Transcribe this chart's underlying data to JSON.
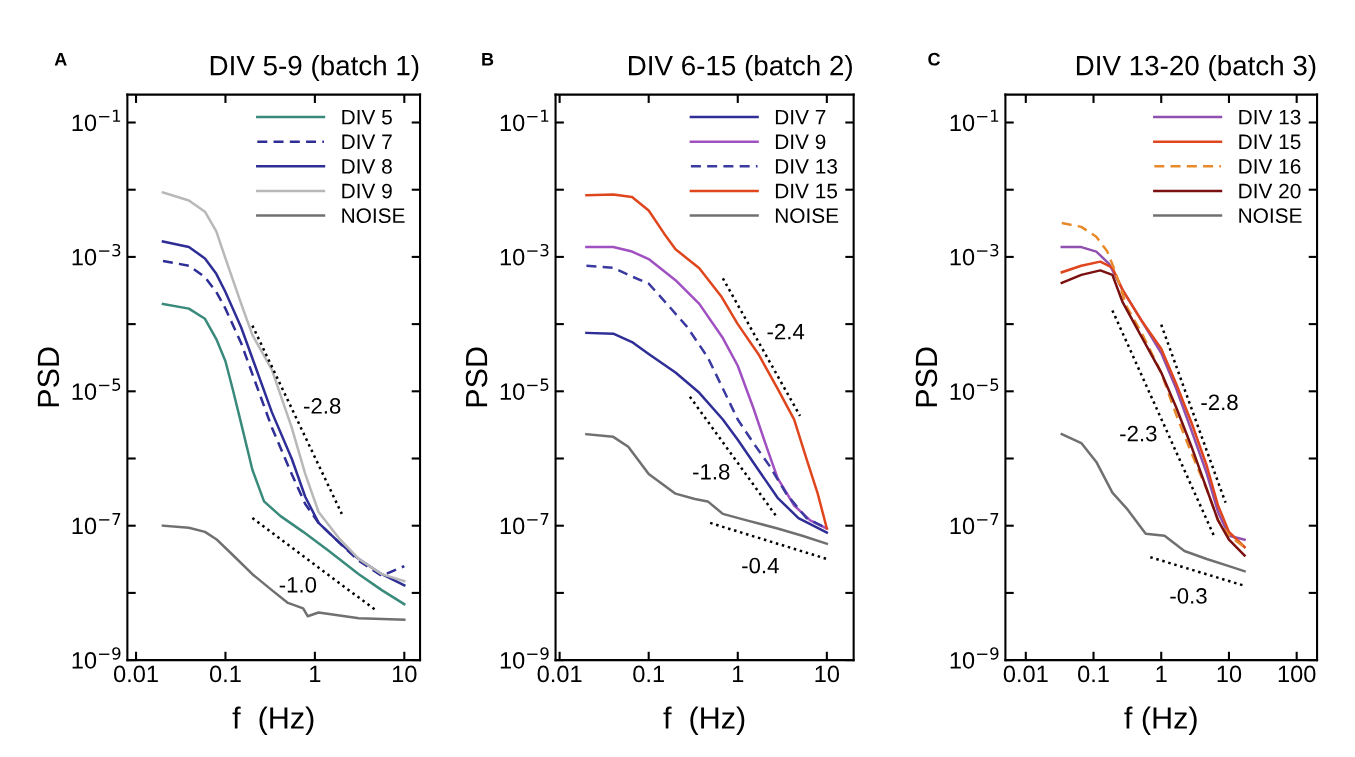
{
  "chart_data": [
    {
      "type": "line",
      "title": "DIV 5-9 (batch 1)",
      "xlabel": "f  (Hz)",
      "ylabel": "PSD",
      "log": "xy",
      "legend": "top right",
      "grid": false,
      "xlim": [
        0.008,
        15
      ],
      "xticks": [
        0.01,
        0.1,
        1,
        10
      ],
      "ylim": [
        1e-09,
        0.26
      ],
      "yticks": [
        {
          "value": 1e-09,
          "label": "10$^{−9}$"
        },
        {
          "value": 1e-08,
          "label": null
        },
        {
          "value": 1e-07,
          "label": "10$^{−7}$"
        },
        {
          "value": 1e-06,
          "label": null
        },
        {
          "value": 1e-05,
          "label": "10$^{−5}$"
        },
        {
          "value": 0.0001,
          "label": null
        },
        {
          "value": 0.001,
          "label": "10$^{−3}$"
        },
        {
          "value": 0.01,
          "label": null
        },
        {
          "value": 0.1,
          "label": "10$^{−1}$"
        }
      ],
      "annotations": [
        "A",
        "-2.8",
        "-1.0"
      ],
      "series": [
        {
          "name": "DIV 5",
          "color": "#3a8a7c",
          "line_style": "solid",
          "x": [
            0.02,
            0.039,
            0.059,
            0.079,
            0.1,
            0.12,
            0.15,
            0.2,
            0.27,
            0.41,
            0.74,
            1.4,
            3.1,
            5.6,
            10
          ],
          "values": [
            0.0002,
            0.00017,
            0.00012,
            6e-05,
            2.8e-05,
            1.1e-05,
            3.3e-06,
            6.8e-07,
            2.3e-07,
            1.4e-07,
            8.1e-08,
            4.3e-08,
            1.9e-08,
            1.1e-08,
            6.8e-09
          ]
        },
        {
          "name": "DIV 7",
          "color": "#2e2e96",
          "line_style": "dashed",
          "x": [
            0.02,
            0.039,
            0.059,
            0.079,
            0.1,
            0.15,
            0.2,
            0.33,
            0.55,
            0.78,
            1.1,
            1.9,
            3.1,
            5.6,
            10
          ],
          "values": [
            0.00087,
            0.00074,
            0.0005,
            0.0003,
            0.00017,
            5.2e-05,
            1.8e-05,
            2.9e-06,
            5.9e-07,
            2.1e-07,
            1.1e-07,
            5.5e-08,
            3e-08,
            1.8e-08,
            2.5e-08
          ]
        },
        {
          "name": "DIV 8",
          "color": "#2e2e96",
          "line_style": "solid",
          "x": [
            0.02,
            0.039,
            0.059,
            0.079,
            0.1,
            0.15,
            0.2,
            0.33,
            0.55,
            0.78,
            1.1,
            1.9,
            3.1,
            5.6,
            10
          ],
          "values": [
            0.0017,
            0.0014,
            0.00095,
            0.00056,
            0.0003,
            8.9e-05,
            3.1e-05,
            4.9e-06,
            1e-06,
            2.7e-07,
            1.1e-07,
            5.5e-08,
            3.2e-08,
            1.9e-08,
            1.3e-08
          ]
        },
        {
          "name": "DIV 9",
          "color": "#b8b8b8",
          "line_style": "solid",
          "x": [
            0.02,
            0.039,
            0.059,
            0.079,
            0.1,
            0.15,
            0.2,
            0.33,
            0.55,
            0.78,
            1.1,
            1.9,
            3.1,
            5.6,
            10
          ],
          "values": [
            0.0091,
            0.0069,
            0.0047,
            0.0024,
            0.00095,
            0.0002,
            6.9e-05,
            2.1e-05,
            2.9e-06,
            5.9e-07,
            1.6e-07,
            6.3e-08,
            3.2e-08,
            1.9e-08,
            1.5e-08
          ]
        },
        {
          "name": "NOISE",
          "color": "#707070",
          "line_style": "solid",
          "x": [
            0.02,
            0.039,
            0.059,
            0.079,
            0.12,
            0.2,
            0.33,
            0.5,
            0.74,
            0.83,
            1.1,
            3.1,
            10
          ],
          "values": [
            1e-07,
            9.3e-08,
            8.1e-08,
            6.3e-08,
            3.7e-08,
            1.9e-08,
            1.1e-08,
            7.1e-09,
            5.9e-09,
            4.5e-09,
            5.1e-09,
            4.2e-09,
            4e-09
          ]
        },
        {
          "color": "#000000",
          "line_style": "dotted",
          "x": [
            0.2,
            2.0
          ],
          "values": [
            9.5e-05,
            1.5e-07
          ]
        },
        {
          "color": "#000000",
          "line_style": "dotted",
          "x": [
            0.2,
            4.9
          ],
          "values": [
            1.3e-07,
            5.4e-09
          ]
        }
      ]
    },
    {
      "type": "line",
      "title": "DIV 6-15 (batch 2)",
      "xlabel": "f  (Hz)",
      "ylabel": "PSD",
      "log": "xy",
      "legend": "top right",
      "grid": false,
      "xlim": [
        0.009,
        20
      ],
      "xticks": [
        0.01,
        0.1,
        1,
        10
      ],
      "ylim": [
        1e-09,
        0.26
      ],
      "yticks": [
        {
          "value": 1e-09,
          "label": "10$^{−9}$"
        },
        {
          "value": 1e-08,
          "label": null
        },
        {
          "value": 1e-07,
          "label": "10$^{−7}$"
        },
        {
          "value": 1e-06,
          "label": null
        },
        {
          "value": 1e-05,
          "label": "10$^{−5}$"
        },
        {
          "value": 0.0001,
          "label": null
        },
        {
          "value": 0.001,
          "label": "10$^{−3}$"
        },
        {
          "value": 0.01,
          "label": null
        },
        {
          "value": 0.1,
          "label": "10$^{−1}$"
        }
      ],
      "annotations": [
        "B",
        "-2.4",
        "-1.8",
        "-0.4"
      ],
      "series": [
        {
          "name": "DIV 7",
          "color": "#2e2e96",
          "line_style": "solid",
          "x": [
            0.02,
            0.04,
            0.065,
            0.1,
            0.2,
            0.37,
            0.68,
            1.0,
            1.7,
            2.8,
            4.8,
            10
          ],
          "values": [
            7.4e-05,
            7.2e-05,
            5.4e-05,
            3.6e-05,
            1.9e-05,
            9.5e-06,
            3.8e-06,
            1.9e-06,
            6.8e-07,
            2.6e-07,
            1.3e-07,
            7.9e-08
          ]
        },
        {
          "name": "DIV 9",
          "color": "#a050c0",
          "line_style": "solid",
          "x": [
            0.02,
            0.04,
            0.065,
            0.1,
            0.2,
            0.37,
            0.68,
            1.0,
            1.5,
            2.1,
            2.8,
            4.3,
            6.5,
            10
          ],
          "values": [
            0.0014,
            0.0014,
            0.0012,
            0.00093,
            0.00045,
            0.0002,
            6.2e-05,
            2.4e-05,
            5.6e-06,
            1.5e-06,
            5.1e-07,
            2e-07,
            1.2e-07,
            9.1e-08
          ]
        },
        {
          "name": "DIV 13",
          "color": "#3a3aa0",
          "line_style": "dashed",
          "x": [
            0.02,
            0.04,
            0.065,
            0.1,
            0.16,
            0.27,
            0.46,
            0.68,
            1.0,
            1.5,
            2.3,
            3.5,
            5.9,
            10
          ],
          "values": [
            0.00074,
            0.00069,
            0.00051,
            0.0004,
            0.0002,
            9.1e-05,
            3.2e-05,
            1.1e-05,
            3.8e-06,
            1.7e-06,
            7.6e-07,
            3e-07,
            1.3e-07,
            9.1e-08
          ]
        },
        {
          "name": "DIV 15",
          "color": "#e0461e",
          "line_style": "solid",
          "x": [
            0.02,
            0.04,
            0.065,
            0.1,
            0.15,
            0.2,
            0.37,
            0.65,
            1.0,
            1.7,
            2.8,
            4.3,
            5.9,
            7.9,
            10
          ],
          "values": [
            0.0083,
            0.0085,
            0.0078,
            0.0049,
            0.0022,
            0.0013,
            0.00068,
            0.00026,
            0.0001,
            3.6e-05,
            1.1e-05,
            3.8e-06,
            1e-06,
            3e-07,
            9.1e-08
          ]
        },
        {
          "name": "NOISE",
          "color": "#707070",
          "line_style": "solid",
          "x": [
            0.02,
            0.04,
            0.059,
            0.1,
            0.2,
            0.33,
            0.46,
            0.68,
            1.26,
            2.8,
            5.3,
            10
          ],
          "values": [
            2.3e-06,
            2.1e-06,
            1.5e-06,
            5.9e-07,
            3e-07,
            2.5e-07,
            2.3e-07,
            1.5e-07,
            1.2e-07,
            9.1e-08,
            7.1e-08,
            5.4e-08
          ]
        },
        {
          "color": "#000000",
          "line_style": "dotted",
          "x": [
            0.68,
            5.0
          ],
          "values": [
            0.00048,
            4.3e-06
          ]
        },
        {
          "color": "#000000",
          "line_style": "dotted",
          "x": [
            0.29,
            2.8
          ],
          "values": [
            8.3e-06,
            1.3e-07
          ]
        },
        {
          "color": "#000000",
          "line_style": "dotted",
          "x": [
            0.49,
            10
          ],
          "values": [
            1.1e-07,
            3.2e-08
          ]
        }
      ]
    },
    {
      "type": "line",
      "title": "DIV 13-20 (batch 3)",
      "xlabel": "f (Hz)",
      "ylabel": "PSD",
      "log": "xy",
      "legend": "top right",
      "grid": false,
      "xlim": [
        0.005,
        200
      ],
      "xticks": [
        0.01,
        0.1,
        1,
        10,
        100
      ],
      "ylim": [
        1e-09,
        0.26
      ],
      "yticks": [
        {
          "value": 1e-09,
          "label": "10$^{−9}$"
        },
        {
          "value": 1e-08,
          "label": null
        },
        {
          "value": 1e-07,
          "label": "10$^{−7}$"
        },
        {
          "value": 1e-06,
          "label": null
        },
        {
          "value": 1e-05,
          "label": "10$^{−5}$"
        },
        {
          "value": 0.0001,
          "label": null
        },
        {
          "value": 0.001,
          "label": "10$^{−3}$"
        },
        {
          "value": 0.01,
          "label": null
        },
        {
          "value": 0.1,
          "label": "10$^{−1}$"
        }
      ],
      "annotations": [
        "C",
        "-2.3",
        "-2.8",
        "-0.3"
      ],
      "series": [
        {
          "name": "DIV 13",
          "color": "#9050b0",
          "line_style": "solid",
          "x": [
            0.034,
            0.066,
            0.11,
            0.17,
            0.27,
            0.52,
            1.0,
            1.66,
            2.8,
            4.7,
            6.9,
            10,
            17
          ],
          "values": [
            0.0014,
            0.0014,
            0.0012,
            0.00079,
            0.00032,
            0.00011,
            3.7e-05,
            1.1e-05,
            2.6e-06,
            6e-07,
            1.6e-07,
            7.1e-08,
            6.2e-08
          ]
        },
        {
          "name": "DIV 15",
          "color": "#e0461e",
          "line_style": "solid",
          "x": [
            0.034,
            0.066,
            0.126,
            0.19,
            0.27,
            0.52,
            1.0,
            1.66,
            2.8,
            4.7,
            6.9,
            10,
            17
          ],
          "values": [
            0.00059,
            0.00074,
            0.00085,
            0.00069,
            0.00032,
            0.00011,
            4.3e-05,
            1.3e-05,
            3.4e-06,
            7.8e-07,
            2e-07,
            8.1e-08,
            4.8e-08
          ]
        },
        {
          "name": "DIV 16",
          "color": "#e88a2a",
          "line_style": "dashed",
          "x": [
            0.034,
            0.066,
            0.11,
            0.16,
            0.21,
            0.31,
            0.52,
            1.0,
            1.66,
            2.8,
            4.7,
            6.9,
            10,
            17
          ],
          "values": [
            0.0032,
            0.0028,
            0.002,
            0.0012,
            0.0006,
            0.00018,
            7.2e-05,
            1.9e-05,
            4.5e-06,
            1.2e-06,
            3.5e-07,
            1.2e-07,
            7.1e-08,
            4.8e-08
          ]
        },
        {
          "name": "DIV 20",
          "color": "#7a1010",
          "line_style": "solid",
          "x": [
            0.034,
            0.066,
            0.126,
            0.19,
            0.27,
            0.52,
            1.0,
            1.66,
            2.8,
            4.7,
            6.9,
            10,
            17
          ],
          "values": [
            0.00041,
            0.00054,
            0.00063,
            0.00054,
            0.00021,
            6.3e-05,
            1.9e-05,
            5.8e-06,
            1.5e-06,
            3.5e-07,
            1.2e-07,
            6.2e-08,
            3.6e-08
          ]
        },
        {
          "name": "NOISE",
          "color": "#707070",
          "line_style": "solid",
          "x": [
            0.034,
            0.066,
            0.11,
            0.19,
            0.31,
            0.59,
            1.12,
            2.2,
            4.7,
            10,
            17
          ],
          "values": [
            2.3e-06,
            1.7e-06,
            8.9e-07,
            3.1e-07,
            1.8e-07,
            7.6e-08,
            7.1e-08,
            4.2e-08,
            3.2e-08,
            2.5e-08,
            2.1e-08
          ]
        },
        {
          "color": "#000000",
          "line_style": "dotted",
          "x": [
            0.19,
            6.2
          ],
          "values": [
            0.00016,
            6.6e-08
          ]
        },
        {
          "color": "#000000",
          "line_style": "dotted",
          "x": [
            1.0,
            8.9
          ],
          "values": [
            9.8e-05,
            2.2e-07
          ]
        },
        {
          "color": "#000000",
          "line_style": "dotted",
          "x": [
            0.69,
            16
          ],
          "values": [
            3.4e-08,
            1.3e-08
          ]
        }
      ]
    }
  ]
}
